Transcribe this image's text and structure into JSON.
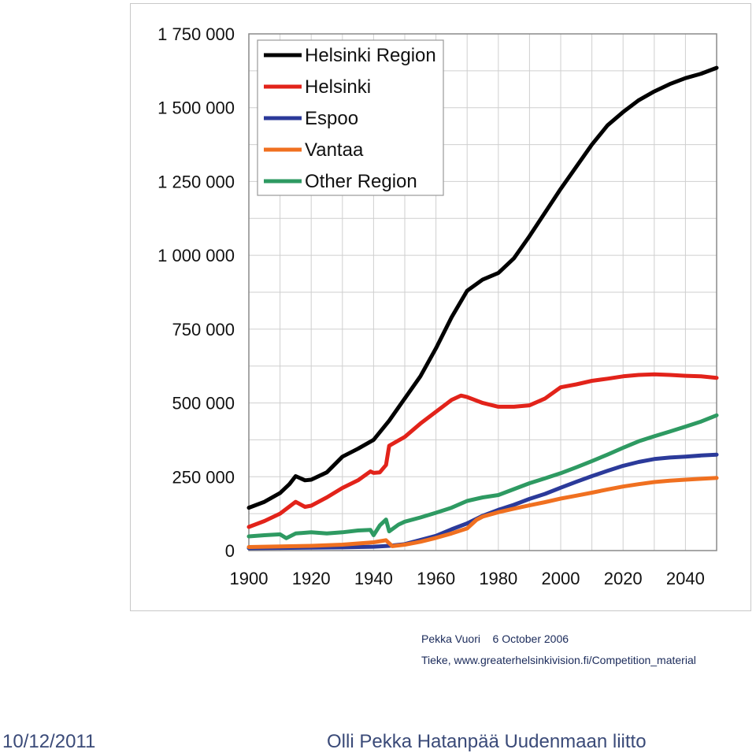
{
  "chart_data": {
    "type": "line",
    "title": "",
    "xlabel": "",
    "ylabel": "",
    "xlim": [
      1900,
      2050
    ],
    "ylim": [
      0,
      1750000
    ],
    "x_ticks": [
      1900,
      1920,
      1940,
      1960,
      1980,
      2000,
      2020,
      2040
    ],
    "x_tick_labels": [
      "1900",
      "1920",
      "1940",
      "1960",
      "1980",
      "2000",
      "2020",
      "2040"
    ],
    "y_ticks": [
      0,
      250000,
      500000,
      750000,
      1000000,
      1250000,
      1500000,
      1750000
    ],
    "y_tick_labels": [
      "0",
      "250 000",
      "500 000",
      "750 000",
      "1 000 000",
      "1 250 000",
      "1 500 000",
      "1 750 000"
    ],
    "grid": true,
    "legend_position": "top-left",
    "series": [
      {
        "name": "Helsinki Region",
        "color": "#000000",
        "points": [
          [
            1900,
            145000
          ],
          [
            1905,
            165000
          ],
          [
            1910,
            195000
          ],
          [
            1913,
            225000
          ],
          [
            1915,
            252000
          ],
          [
            1918,
            238000
          ],
          [
            1920,
            240000
          ],
          [
            1925,
            265000
          ],
          [
            1930,
            318000
          ],
          [
            1935,
            345000
          ],
          [
            1940,
            375000
          ],
          [
            1945,
            440000
          ],
          [
            1950,
            515000
          ],
          [
            1955,
            590000
          ],
          [
            1960,
            685000
          ],
          [
            1965,
            790000
          ],
          [
            1970,
            880000
          ],
          [
            1975,
            918000
          ],
          [
            1980,
            940000
          ],
          [
            1985,
            990000
          ],
          [
            1990,
            1065000
          ],
          [
            1995,
            1145000
          ],
          [
            2000,
            1225000
          ],
          [
            2005,
            1300000
          ],
          [
            2010,
            1375000
          ],
          [
            2015,
            1440000
          ],
          [
            2020,
            1485000
          ],
          [
            2025,
            1525000
          ],
          [
            2030,
            1555000
          ],
          [
            2035,
            1580000
          ],
          [
            2040,
            1600000
          ],
          [
            2045,
            1615000
          ],
          [
            2050,
            1635000
          ]
        ]
      },
      {
        "name": "Helsinki",
        "color": "#e2231a",
        "points": [
          [
            1900,
            80000
          ],
          [
            1905,
            100000
          ],
          [
            1910,
            125000
          ],
          [
            1915,
            165000
          ],
          [
            1918,
            148000
          ],
          [
            1920,
            152000
          ],
          [
            1925,
            180000
          ],
          [
            1930,
            212000
          ],
          [
            1935,
            238000
          ],
          [
            1939,
            268000
          ],
          [
            1940,
            263000
          ],
          [
            1942,
            265000
          ],
          [
            1944,
            290000
          ],
          [
            1945,
            355000
          ],
          [
            1950,
            385000
          ],
          [
            1955,
            430000
          ],
          [
            1960,
            470000
          ],
          [
            1965,
            510000
          ],
          [
            1968,
            525000
          ],
          [
            1970,
            520000
          ],
          [
            1975,
            500000
          ],
          [
            1980,
            487000
          ],
          [
            1985,
            487000
          ],
          [
            1990,
            492000
          ],
          [
            1995,
            515000
          ],
          [
            2000,
            553000
          ],
          [
            2005,
            563000
          ],
          [
            2010,
            575000
          ],
          [
            2015,
            582000
          ],
          [
            2020,
            590000
          ],
          [
            2025,
            595000
          ],
          [
            2030,
            597000
          ],
          [
            2035,
            595000
          ],
          [
            2040,
            592000
          ],
          [
            2045,
            590000
          ],
          [
            2050,
            585000
          ]
        ]
      },
      {
        "name": "Espoo",
        "color": "#2b3a9a",
        "points": [
          [
            1900,
            8000
          ],
          [
            1910,
            9000
          ],
          [
            1920,
            10000
          ],
          [
            1930,
            11000
          ],
          [
            1940,
            13000
          ],
          [
            1945,
            16000
          ],
          [
            1950,
            22000
          ],
          [
            1955,
            36000
          ],
          [
            1960,
            50000
          ],
          [
            1965,
            72000
          ],
          [
            1970,
            92000
          ],
          [
            1975,
            118000
          ],
          [
            1980,
            138000
          ],
          [
            1985,
            155000
          ],
          [
            1990,
            175000
          ],
          [
            1995,
            192000
          ],
          [
            2000,
            213000
          ],
          [
            2005,
            233000
          ],
          [
            2010,
            252000
          ],
          [
            2015,
            270000
          ],
          [
            2020,
            287000
          ],
          [
            2025,
            300000
          ],
          [
            2030,
            310000
          ],
          [
            2035,
            315000
          ],
          [
            2040,
            318000
          ],
          [
            2045,
            322000
          ],
          [
            2050,
            325000
          ]
        ]
      },
      {
        "name": "Vantaa",
        "color": "#f07020",
        "points": [
          [
            1900,
            12000
          ],
          [
            1910,
            14000
          ],
          [
            1920,
            16000
          ],
          [
            1930,
            20000
          ],
          [
            1940,
            28000
          ],
          [
            1944,
            35000
          ],
          [
            1946,
            15000
          ],
          [
            1950,
            20000
          ],
          [
            1955,
            30000
          ],
          [
            1960,
            43000
          ],
          [
            1965,
            58000
          ],
          [
            1970,
            75000
          ],
          [
            1973,
            104000
          ],
          [
            1975,
            115000
          ],
          [
            1980,
            130000
          ],
          [
            1985,
            142000
          ],
          [
            1990,
            153000
          ],
          [
            1995,
            164000
          ],
          [
            2000,
            176000
          ],
          [
            2005,
            186000
          ],
          [
            2010,
            196000
          ],
          [
            2015,
            207000
          ],
          [
            2020,
            217000
          ],
          [
            2025,
            225000
          ],
          [
            2030,
            232000
          ],
          [
            2035,
            237000
          ],
          [
            2040,
            240000
          ],
          [
            2045,
            243000
          ],
          [
            2050,
            246000
          ]
        ]
      },
      {
        "name": "Other Region",
        "color": "#2e9a62",
        "points": [
          [
            1900,
            48000
          ],
          [
            1905,
            52000
          ],
          [
            1910,
            55000
          ],
          [
            1912,
            42000
          ],
          [
            1915,
            58000
          ],
          [
            1920,
            62000
          ],
          [
            1925,
            58000
          ],
          [
            1930,
            62000
          ],
          [
            1935,
            68000
          ],
          [
            1939,
            70000
          ],
          [
            1940,
            52000
          ],
          [
            1942,
            85000
          ],
          [
            1944,
            105000
          ],
          [
            1945,
            65000
          ],
          [
            1948,
            88000
          ],
          [
            1950,
            98000
          ],
          [
            1955,
            112000
          ],
          [
            1960,
            128000
          ],
          [
            1965,
            145000
          ],
          [
            1970,
            168000
          ],
          [
            1975,
            180000
          ],
          [
            1980,
            188000
          ],
          [
            1985,
            208000
          ],
          [
            1990,
            228000
          ],
          [
            1995,
            245000
          ],
          [
            2000,
            262000
          ],
          [
            2005,
            282000
          ],
          [
            2010,
            303000
          ],
          [
            2015,
            325000
          ],
          [
            2020,
            348000
          ],
          [
            2025,
            370000
          ],
          [
            2030,
            387000
          ],
          [
            2035,
            403000
          ],
          [
            2040,
            420000
          ],
          [
            2045,
            437000
          ],
          [
            2050,
            458000
          ]
        ]
      }
    ]
  },
  "credits": {
    "author": "Pekka Vuori",
    "date": "6  October 2006",
    "source": "Tieke, www.greaterhelsinkivision.fi/Competition_material"
  },
  "footer": {
    "date": "10/12/2011",
    "presenter": "Olli Pekka Hatanpää  Uudenmaan liitto"
  }
}
